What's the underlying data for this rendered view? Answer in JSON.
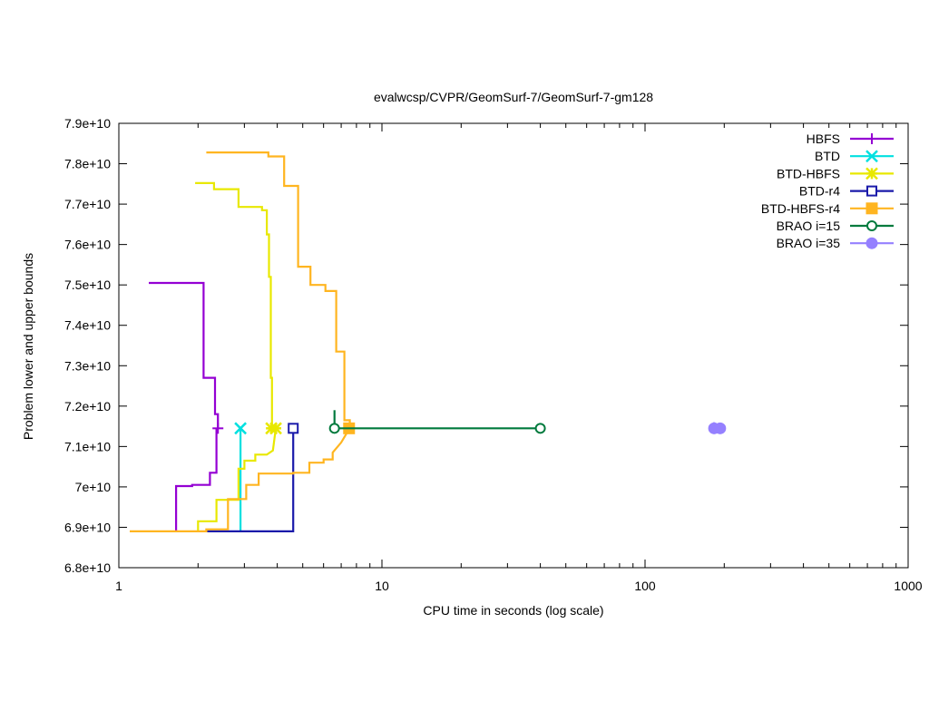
{
  "chart_data": {
    "type": "line",
    "title": "evalwcsp/CVPR/GeomSurf-7/GeomSurf-7-gm128",
    "xlabel": "CPU time in seconds (log scale)",
    "ylabel": "Problem lower and upper bounds",
    "xscale": "log",
    "xlim": [
      1,
      1000
    ],
    "ylim": [
      68000000000.0,
      79000000000.0
    ],
    "xticks": [
      1,
      10,
      100,
      1000
    ],
    "xtick_labels": [
      "1",
      "10",
      "100",
      "1000"
    ],
    "yticks": [
      68000000000.0,
      69000000000.0,
      70000000000.0,
      71000000000.0,
      72000000000.0,
      73000000000.0,
      74000000000.0,
      75000000000.0,
      76000000000.0,
      77000000000.0,
      78000000000.0,
      79000000000.0
    ],
    "ytick_labels": [
      "6.8e+10",
      "6.9e+10",
      "7e+10",
      "7.1e+10",
      "7.2e+10",
      "7.3e+10",
      "7.4e+10",
      "7.5e+10",
      "7.6e+10",
      "7.7e+10",
      "7.8e+10",
      "7.9e+10"
    ],
    "grid": false,
    "legend_position": "top-right",
    "series": [
      {
        "name": "HBFS",
        "color": "#9400d3",
        "marker": "plus",
        "upper": [
          [
            1.3,
            75050000000.0
          ],
          [
            2.1,
            75050000000.0
          ],
          [
            2.1,
            72700000000.0
          ],
          [
            2.32,
            72700000000.0
          ],
          [
            2.32,
            71800000000.0
          ],
          [
            2.38,
            71800000000.0
          ],
          [
            2.38,
            71450000000.0
          ]
        ],
        "lower": [
          [
            1.65,
            68900000000.0
          ],
          [
            1.65,
            70020000000.0
          ],
          [
            1.9,
            70020000000.0
          ],
          [
            1.9,
            70050000000.0
          ],
          [
            2.22,
            70050000000.0
          ],
          [
            2.22,
            70350000000.0
          ],
          [
            2.35,
            70350000000.0
          ],
          [
            2.35,
            71450000000.0
          ]
        ],
        "marks": [
          [
            2.38,
            71450000000.0
          ]
        ]
      },
      {
        "name": "BTD",
        "color": "#00e0e0",
        "marker": "cross",
        "upper": [],
        "lower": [
          [
            2.9,
            68900000000.0
          ],
          [
            2.9,
            71450000000.0
          ]
        ],
        "marks": [
          [
            2.9,
            71450000000.0
          ]
        ]
      },
      {
        "name": "BTD-HBFS",
        "color": "#e8e800",
        "marker": "star",
        "upper": [
          [
            1.95,
            77520000000.0
          ],
          [
            2.3,
            77520000000.0
          ],
          [
            2.3,
            77370000000.0
          ],
          [
            2.85,
            77370000000.0
          ],
          [
            2.85,
            76930000000.0
          ],
          [
            3.5,
            76930000000.0
          ],
          [
            3.5,
            76850000000.0
          ],
          [
            3.65,
            76850000000.0
          ],
          [
            3.65,
            76250000000.0
          ],
          [
            3.72,
            76250000000.0
          ],
          [
            3.72,
            75200000000.0
          ],
          [
            3.78,
            75200000000.0
          ],
          [
            3.78,
            72700000000.0
          ],
          [
            3.82,
            72700000000.0
          ],
          [
            3.82,
            71450000000.0
          ]
        ],
        "lower": [
          [
            2.0,
            68900000000.0
          ],
          [
            2.0,
            69150000000.0
          ],
          [
            2.35,
            69150000000.0
          ],
          [
            2.35,
            69680000000.0
          ],
          [
            2.85,
            69680000000.0
          ],
          [
            2.85,
            70450000000.0
          ],
          [
            3.0,
            70450000000.0
          ],
          [
            3.0,
            70650000000.0
          ],
          [
            3.3,
            70650000000.0
          ],
          [
            3.3,
            70800000000.0
          ],
          [
            3.65,
            70800000000.0
          ],
          [
            3.85,
            70900000000.0
          ],
          [
            3.95,
            71450000000.0
          ]
        ],
        "marks": [
          [
            3.8,
            71450000000.0
          ],
          [
            3.95,
            71450000000.0
          ]
        ]
      },
      {
        "name": "BTD-r4",
        "color": "#1a1aaa",
        "marker": "square-open",
        "upper": [],
        "lower": [
          [
            2.15,
            68900000000.0
          ],
          [
            4.6,
            68900000000.0
          ],
          [
            4.6,
            71450000000.0
          ]
        ],
        "marks": [
          [
            4.6,
            71450000000.0
          ]
        ]
      },
      {
        "name": "BTD-HBFS-r4",
        "color": "#ffb520",
        "marker": "square-filled",
        "upper": [
          [
            2.15,
            78280000000.0
          ],
          [
            3.7,
            78280000000.0
          ],
          [
            3.7,
            78180000000.0
          ],
          [
            4.25,
            78180000000.0
          ],
          [
            4.25,
            77450000000.0
          ],
          [
            4.8,
            77450000000.0
          ],
          [
            4.8,
            75450000000.0
          ],
          [
            5.35,
            75450000000.0
          ],
          [
            5.35,
            75000000000.0
          ],
          [
            6.1,
            75000000000.0
          ],
          [
            6.1,
            74850000000.0
          ],
          [
            6.7,
            74850000000.0
          ],
          [
            6.7,
            73350000000.0
          ],
          [
            7.2,
            73350000000.0
          ],
          [
            7.2,
            71650000000.0
          ],
          [
            7.55,
            71650000000.0
          ],
          [
            7.55,
            71450000000.0
          ]
        ],
        "lower": [
          [
            1.1,
            68900000000.0
          ],
          [
            2.15,
            68900000000.0
          ],
          [
            2.15,
            68950000000.0
          ],
          [
            2.6,
            68950000000.0
          ],
          [
            2.6,
            69700000000.0
          ],
          [
            3.05,
            69700000000.0
          ],
          [
            3.05,
            70050000000.0
          ],
          [
            3.4,
            70050000000.0
          ],
          [
            3.4,
            70330000000.0
          ],
          [
            4.6,
            70330000000.0
          ],
          [
            4.6,
            70350000000.0
          ],
          [
            5.3,
            70350000000.0
          ],
          [
            5.3,
            70600000000.0
          ],
          [
            6.0,
            70600000000.0
          ],
          [
            6.0,
            70680000000.0
          ],
          [
            6.5,
            70680000000.0
          ],
          [
            6.5,
            70850000000.0
          ],
          [
            7.0,
            71100000000.0
          ],
          [
            7.3,
            71300000000.0
          ],
          [
            7.5,
            71450000000.0
          ]
        ],
        "marks": [
          [
            7.5,
            71450000000.0
          ]
        ]
      },
      {
        "name": "BRAO i=15",
        "color": "#007a3d",
        "marker": "circle-open",
        "upper": [
          [
            6.6,
            71900000000.0
          ],
          [
            6.6,
            71450000000.0
          ]
        ],
        "lower": [
          [
            6.6,
            71450000000.0
          ],
          [
            40.0,
            71450000000.0
          ]
        ],
        "marks": [
          [
            6.6,
            71450000000.0
          ],
          [
            40.0,
            71450000000.0
          ]
        ]
      },
      {
        "name": "BRAO i=35",
        "color": "#9580ff",
        "marker": "circle-filled",
        "upper": [
          [
            183,
            71600000000.0
          ],
          [
            183,
            71450000000.0
          ]
        ],
        "lower": [
          [
            183,
            71450000000.0
          ],
          [
            193,
            71450000000.0
          ]
        ],
        "marks": [
          [
            183,
            71450000000.0
          ],
          [
            193,
            71450000000.0
          ]
        ]
      }
    ]
  }
}
